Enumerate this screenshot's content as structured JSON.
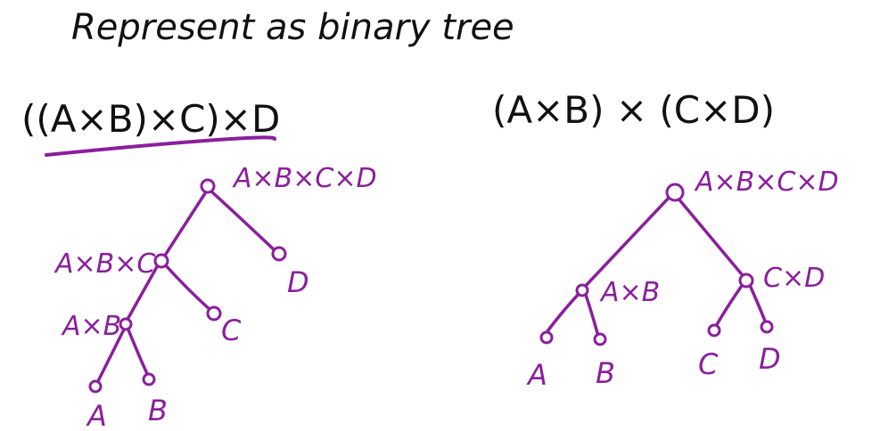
{
  "title": "Represent as binary tree",
  "left": {
    "expression": "((A×B)×C)×D",
    "root": "A×B×C×D",
    "n1": "A×B×C",
    "n2": "A×B",
    "leaf_a": "A",
    "leaf_b": "B",
    "leaf_c": "C",
    "leaf_d": "D"
  },
  "right": {
    "expression": "(A×B) × (C×D)",
    "root": "A×B×C×D",
    "n_ab": "A×B",
    "n_cd": "C×D",
    "leaf_a": "A",
    "leaf_b": "B",
    "leaf_c": "C",
    "leaf_d": "D"
  },
  "colors": {
    "ink": "#111111",
    "accent": "#8a1f9c",
    "background": "#ffffff"
  }
}
